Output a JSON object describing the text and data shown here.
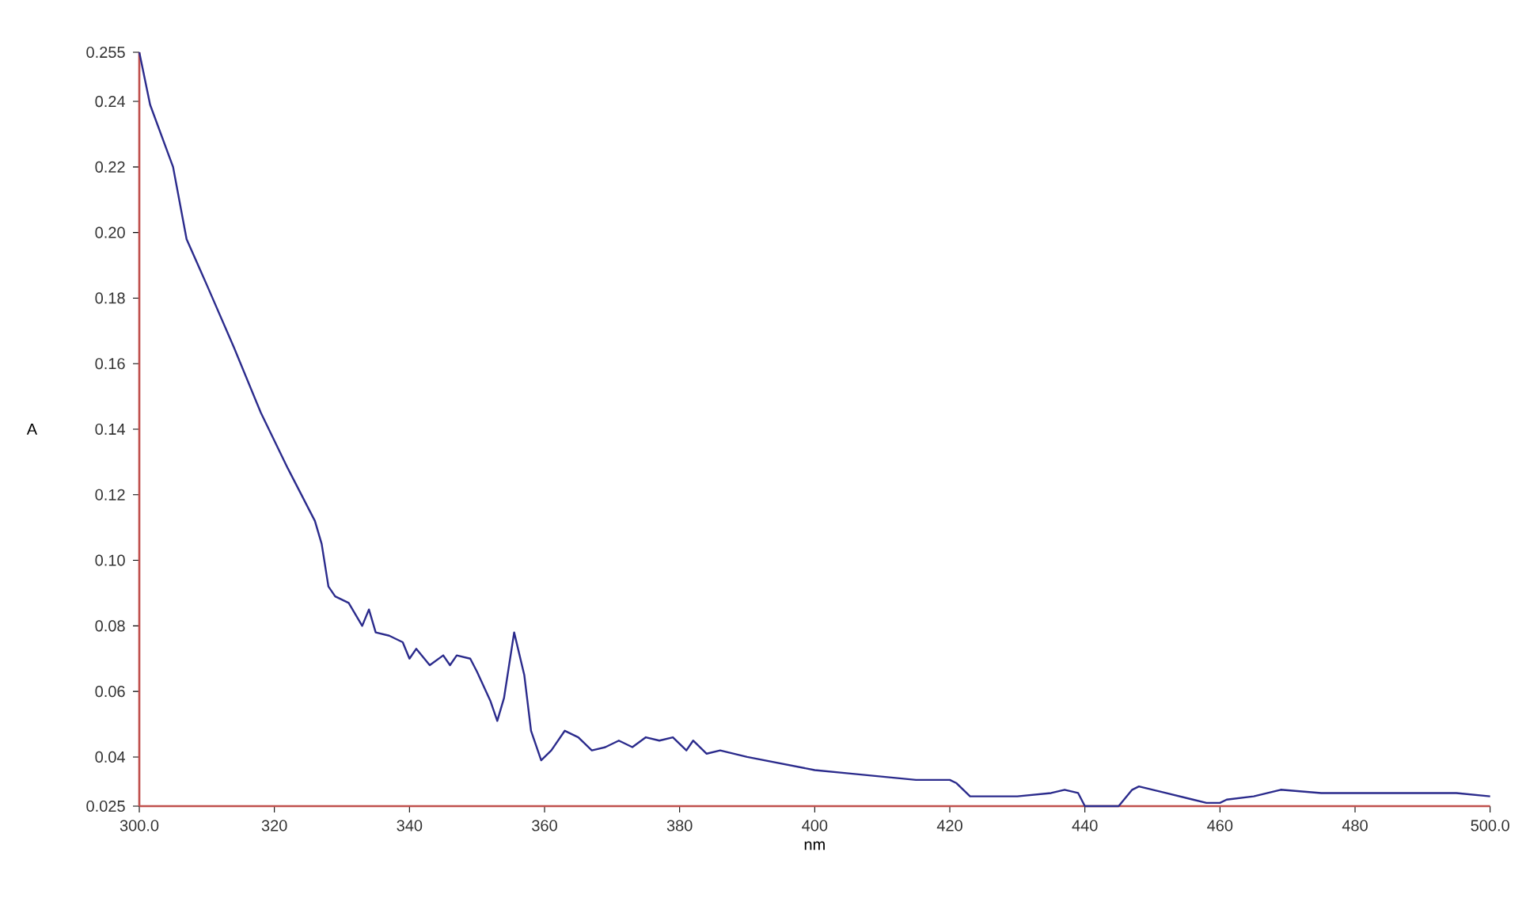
{
  "chart_data": {
    "type": "line",
    "xlabel": "nm",
    "ylabel": "A",
    "x": [
      300,
      301.6,
      305,
      307,
      310,
      314,
      318,
      322,
      326,
      327,
      328,
      329,
      331,
      333,
      334,
      335,
      337,
      339,
      340,
      341,
      343,
      345,
      346,
      347,
      349,
      350,
      352,
      353,
      354,
      355.5,
      357,
      358,
      359.5,
      361,
      363,
      365,
      367,
      369,
      371,
      373,
      375,
      377,
      379,
      381,
      382,
      384,
      386,
      390,
      395,
      400,
      405,
      410,
      415,
      420,
      421,
      423,
      430,
      435,
      437,
      439,
      440,
      445,
      447,
      448,
      452,
      456,
      458,
      460,
      461,
      465,
      469,
      475,
      480,
      490,
      495,
      500
    ],
    "series": [
      {
        "color": "#2b2b8c",
        "values": [
          0.255,
          0.239,
          0.22,
          0.198,
          0.184,
          0.165,
          0.145,
          0.128,
          0.112,
          0.105,
          0.092,
          0.089,
          0.087,
          0.08,
          0.085,
          0.078,
          0.077,
          0.075,
          0.07,
          0.073,
          0.068,
          0.071,
          0.068,
          0.071,
          0.07,
          0.066,
          0.057,
          0.051,
          0.058,
          0.078,
          0.065,
          0.048,
          0.039,
          0.042,
          0.048,
          0.046,
          0.042,
          0.043,
          0.045,
          0.043,
          0.046,
          0.045,
          0.046,
          0.042,
          0.045,
          0.041,
          0.042,
          0.04,
          0.038,
          0.036,
          0.035,
          0.034,
          0.033,
          0.033,
          0.032,
          0.028,
          0.028,
          0.029,
          0.03,
          0.029,
          0.025,
          0.025,
          0.03,
          0.031,
          0.029,
          0.027,
          0.026,
          0.026,
          0.027,
          0.028,
          0.03,
          0.029,
          0.029,
          0.029,
          0.029,
          0.028
        ]
      }
    ],
    "xlim": [
      300,
      500
    ],
    "ylim": [
      0.025,
      0.255
    ],
    "xticks": [
      {
        "value": 300,
        "label": "300.0"
      },
      320,
      340,
      360,
      380,
      400,
      420,
      440,
      460,
      480,
      {
        "value": 500,
        "label": "500.0"
      }
    ],
    "yticks": [
      {
        "value": 0.025,
        "label": "0.025"
      },
      {
        "value": 0.04,
        "label": "0.04"
      },
      {
        "value": 0.06,
        "label": "0.06"
      },
      {
        "value": 0.08,
        "label": "0.08"
      },
      {
        "value": 0.1,
        "label": "0.10"
      },
      {
        "value": 0.12,
        "label": "0.12"
      },
      {
        "value": 0.14,
        "label": "0.14"
      },
      {
        "value": 0.16,
        "label": "0.16"
      },
      {
        "value": 0.18,
        "label": "0.18"
      },
      {
        "value": 0.2,
        "label": "0.20"
      },
      {
        "value": 0.22,
        "label": "0.22"
      },
      {
        "value": 0.24,
        "label": "0.24"
      },
      {
        "value": 0.255,
        "label": "0.255"
      }
    ],
    "line_style": "solid"
  }
}
